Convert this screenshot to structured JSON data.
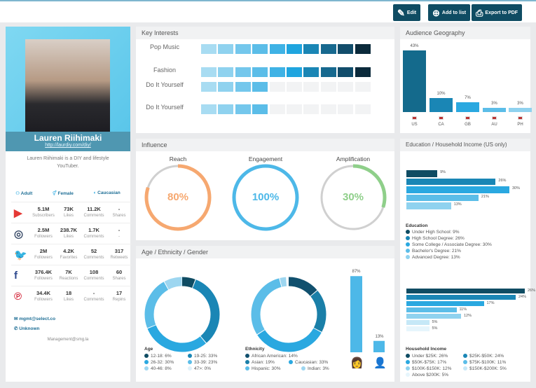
{
  "toolbar": {
    "edit": "Edit",
    "add_to_list": "Add to list",
    "export_pdf": "Export to PDF"
  },
  "profile": {
    "name": "Lauren Riihimaki",
    "url": "http://laurdiy.com/diy/",
    "bio": "Lauren Riihimaki is a DIY and lifestyle YouTuber.",
    "tags": [
      {
        "icon": "adult-icon",
        "label": "Adult"
      },
      {
        "icon": "gender-icon",
        "label": "Female"
      },
      {
        "icon": "toggle-icon",
        "label": "Caucasian"
      }
    ],
    "socials": [
      {
        "network": "youtube",
        "icon_color": "#e53935",
        "stats": [
          {
            "v": "5.1M",
            "l": "Subscribers"
          },
          {
            "v": "73K",
            "l": "Likes"
          },
          {
            "v": "11.2K",
            "l": "Comments"
          },
          {
            "v": "-",
            "l": "Shares"
          }
        ]
      },
      {
        "network": "instagram",
        "icon_color": "#3d4f6b",
        "stats": [
          {
            "v": "2.5M",
            "l": "Followers"
          },
          {
            "v": "238.7K",
            "l": "Likes"
          },
          {
            "v": "1.7K",
            "l": "Comments"
          },
          {
            "v": "-",
            "l": "-"
          }
        ]
      },
      {
        "network": "twitter",
        "icon_color": "#2aa3e0",
        "stats": [
          {
            "v": "2M",
            "l": "Followers"
          },
          {
            "v": "4.2K",
            "l": "Favorites"
          },
          {
            "v": "52",
            "l": "Comments"
          },
          {
            "v": "317",
            "l": "Retweets"
          }
        ]
      },
      {
        "network": "facebook",
        "icon_color": "#2f4b8f",
        "stats": [
          {
            "v": "376.4K",
            "l": "Followers"
          },
          {
            "v": "7K",
            "l": "Reactions"
          },
          {
            "v": "108",
            "l": "Comments"
          },
          {
            "v": "60",
            "l": "Shares"
          }
        ]
      },
      {
        "network": "pinterest",
        "icon_color": "#d3263a",
        "stats": [
          {
            "v": "34.4K",
            "l": "Followers"
          },
          {
            "v": "18",
            "l": "Likes"
          },
          {
            "v": "-",
            "l": "Comments"
          },
          {
            "v": "17",
            "l": "Repins"
          }
        ]
      }
    ],
    "email": "mgmt@select.co",
    "phone": "Unknown",
    "management": "Management@smg.la"
  },
  "key_interests": {
    "title": "Key Interests",
    "items": [
      {
        "label": "Pop Music",
        "level": 10
      },
      {
        "label": "Fashion",
        "level": 10
      },
      {
        "label": "Do It Yourself",
        "level": 4
      },
      {
        "label": "Do It Yourself",
        "level": 4
      }
    ],
    "palette": [
      "#a8dcf2",
      "#8fd2ef",
      "#74c7ec",
      "#5bbde8",
      "#3fb2e5",
      "#1fa5df",
      "#1a86b5",
      "#17698f",
      "#124d6b",
      "#0b2a3b"
    ]
  },
  "geography": {
    "title": "Audience Geography",
    "items": [
      {
        "code": "US",
        "pct": 43,
        "label": "43%",
        "color": "#146a8c"
      },
      {
        "code": "CA",
        "pct": 10,
        "label": "10%",
        "color": "#1a86b5"
      },
      {
        "code": "GB",
        "pct": 7,
        "label": "7%",
        "color": "#2aa8e0"
      },
      {
        "code": "AU",
        "pct": 3,
        "label": "3%",
        "color": "#5bbde8"
      },
      {
        "code": "PH",
        "pct": 3,
        "label": "3%",
        "color": "#8fd2ef"
      }
    ]
  },
  "influence": {
    "title": "Influence",
    "items": [
      {
        "label": "Reach",
        "pct": 80,
        "text": "80%",
        "color": "#f6a870"
      },
      {
        "label": "Engagement",
        "pct": 100,
        "text": "100%",
        "color": "#4db8e8"
      },
      {
        "label": "Amplification",
        "pct": 30,
        "text": "30%",
        "color": "#8fcf8a"
      }
    ]
  },
  "demographics": {
    "title": "Age / Ethnicity / Gender",
    "age": {
      "title": "Age",
      "items": [
        {
          "label": "12-18: 6%",
          "pct": 6,
          "color": "#0f4c63"
        },
        {
          "label": "19-25: 33%",
          "pct": 33,
          "color": "#1a86b5"
        },
        {
          "label": "26-32: 30%",
          "pct": 30,
          "color": "#2aa8e0"
        },
        {
          "label": "33-39: 23%",
          "pct": 23,
          "color": "#5bbde8"
        },
        {
          "label": "40-46: 8%",
          "pct": 8,
          "color": "#9dd6f0"
        },
        {
          "label": "47>: 0%",
          "pct": 0,
          "color": "#dff1fa"
        }
      ]
    },
    "ethnicity": {
      "title": "Ethnicity",
      "items": [
        {
          "label": "African American: 14%",
          "pct": 14,
          "color": "#11506e"
        },
        {
          "label": "Asian: 19%",
          "pct": 19,
          "color": "#1a7fa8"
        },
        {
          "label": "Caucasian: 33%",
          "pct": 33,
          "color": "#2aa8e0"
        },
        {
          "label": "Hispanic: 30%",
          "pct": 30,
          "color": "#5bbde8"
        },
        {
          "label": "Indian: 3%",
          "pct": 3,
          "color": "#9dd6f0"
        }
      ]
    },
    "gender": [
      {
        "label": "87%",
        "pct": 87,
        "icon": "female-icon"
      },
      {
        "label": "13%",
        "pct": 13,
        "icon": "male-icon"
      }
    ]
  },
  "education": {
    "title": "Education / Household Income (US only)",
    "edu_title": "Education",
    "edu": [
      {
        "label": "Under High School: 9%",
        "pct": 9,
        "text": "9%",
        "color": "#0f4c63"
      },
      {
        "label": "High School Degree: 26%",
        "pct": 26,
        "text": "26%",
        "color": "#1a86b5"
      },
      {
        "label": "Some College / Associate Degree: 30%",
        "pct": 30,
        "text": "30%",
        "color": "#2aa8e0"
      },
      {
        "label": "Bachelor's Degree: 21%",
        "pct": 21,
        "text": "21%",
        "color": "#5bbde8"
      },
      {
        "label": "Advanced Degree: 13%",
        "pct": 13,
        "text": "13%",
        "color": "#8fd2ef"
      }
    ],
    "income_title": "Household Income",
    "income": [
      {
        "label": "Under $25K: 26%",
        "pct": 26,
        "text": "26%",
        "color": "#0f4c63"
      },
      {
        "label": "$25K-$50K: 24%",
        "pct": 24,
        "text": "24%",
        "color": "#1a86b5"
      },
      {
        "label": "$50K-$75K: 17%",
        "pct": 17,
        "text": "17%",
        "color": "#2aa8e0"
      },
      {
        "label": "$75K-$100K: 11%",
        "pct": 11,
        "text": "11%",
        "color": "#5bbde8"
      },
      {
        "label": "$100K-$150K: 12%",
        "pct": 12,
        "text": "12%",
        "color": "#8fd2ef"
      },
      {
        "label": "$150K-$200K: 5%",
        "pct": 5,
        "text": "5%",
        "color": "#c6e8f7"
      },
      {
        "label": "Above $200K: 5%",
        "pct": 5,
        "text": "5%",
        "color": "#e6f5fc"
      }
    ]
  }
}
